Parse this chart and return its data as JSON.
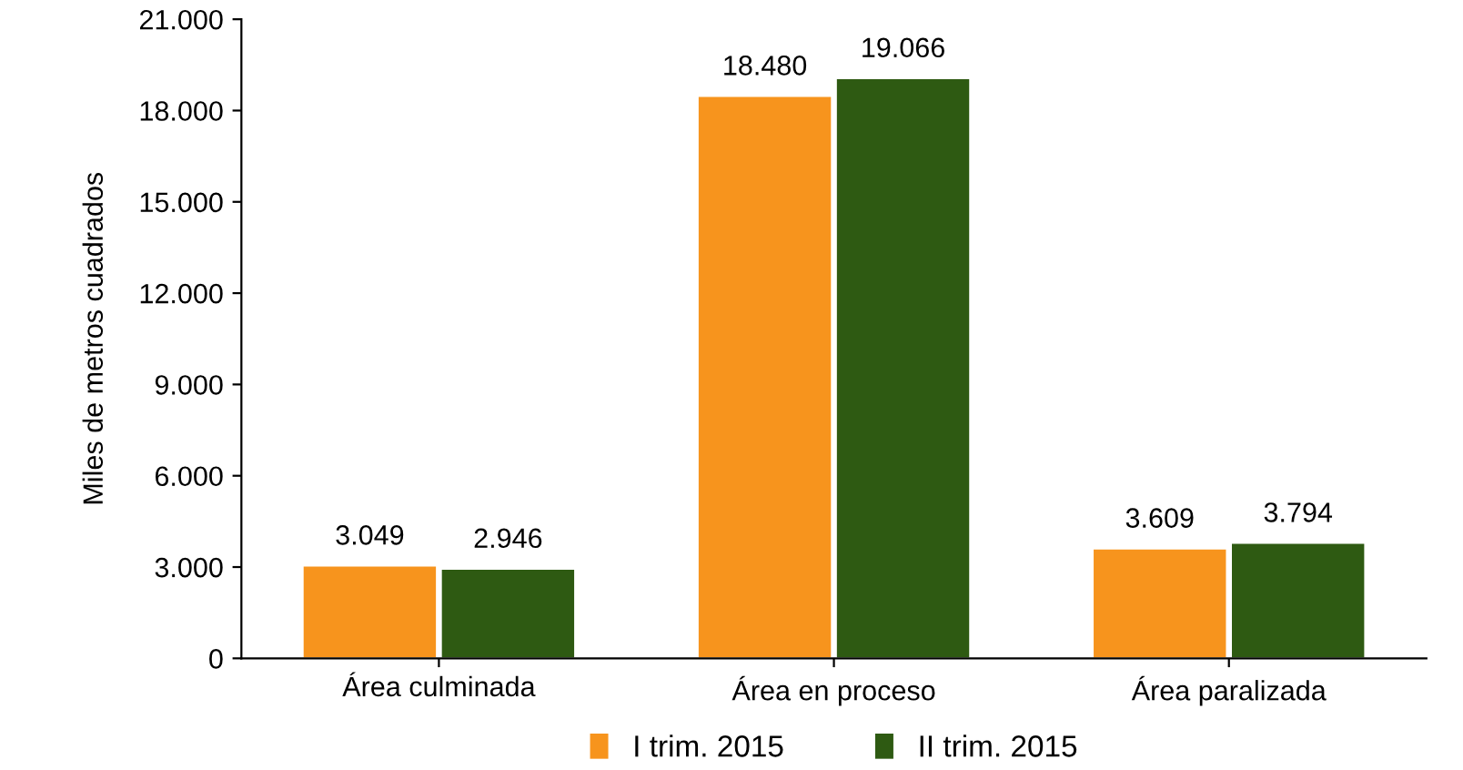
{
  "chart_data": {
    "type": "bar",
    "ylabel": "Miles de metros cuadrados",
    "categories": [
      "Área culminada",
      "Área en proceso",
      "Área paralizada"
    ],
    "series": [
      {
        "name": "I trim. 2015",
        "color": "#f7941d",
        "values": [
          3049,
          18480,
          3609
        ],
        "value_labels": [
          "3.049",
          "18.480",
          "3.609"
        ]
      },
      {
        "name": "II trim. 2015",
        "color": "#2e5a12",
        "values": [
          2946,
          19066,
          3794
        ],
        "value_labels": [
          "2.946",
          "19.066",
          "3.794"
        ]
      }
    ],
    "ylim": [
      0,
      21000
    ],
    "yticks": [
      {
        "value": 0,
        "label": "0"
      },
      {
        "value": 3000,
        "label": "3.000"
      },
      {
        "value": 6000,
        "label": "6.000"
      },
      {
        "value": 9000,
        "label": "9.000"
      },
      {
        "value": 12000,
        "label": "12.000"
      },
      {
        "value": 15000,
        "label": "15.000"
      },
      {
        "value": 18000,
        "label": "18.000"
      },
      {
        "value": 21000,
        "label": "21.000"
      }
    ],
    "grid": false,
    "legend": "bottom"
  }
}
